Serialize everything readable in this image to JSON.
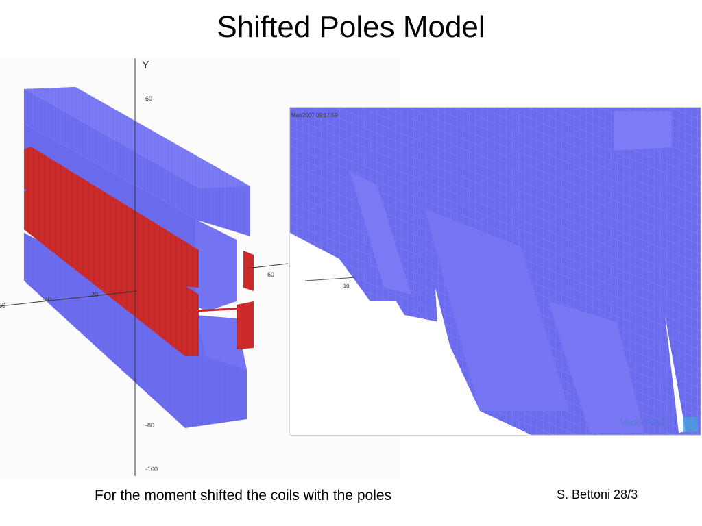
{
  "title": "Shifted Poles Model",
  "left_figure": {
    "y_axis_label": "Y",
    "y_ticks": [
      "60",
      "-80",
      "-100"
    ],
    "x_ticks": [
      "60",
      "-40",
      "-20"
    ],
    "z_tick": "60"
  },
  "right_figure": {
    "timestamp": "Mar/2007 09:17:59",
    "x_tick": "-10",
    "logo": "Vector Fields"
  },
  "caption": "For the moment shifted the coils with the poles",
  "footer": "S. Bettoni 28/3"
}
